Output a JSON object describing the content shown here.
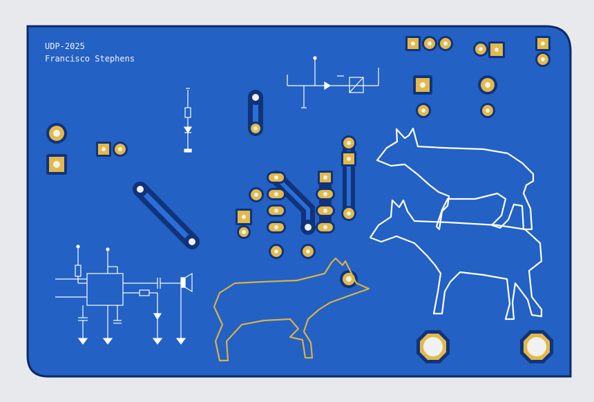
{
  "board": {
    "project_code": "UDP-2025",
    "author": "Francisco Stephens"
  },
  "colors": {
    "background": "#e8e9ec",
    "board_fill": "#2361c4",
    "board_edge": "#0e2a66",
    "copper_trace": "#10337a",
    "pad_gold": "#e2b94a",
    "drill_hole": "#f1f1f1",
    "silkscreen_white": "#ffffff",
    "silkscreen_gold": "#d8b248"
  }
}
